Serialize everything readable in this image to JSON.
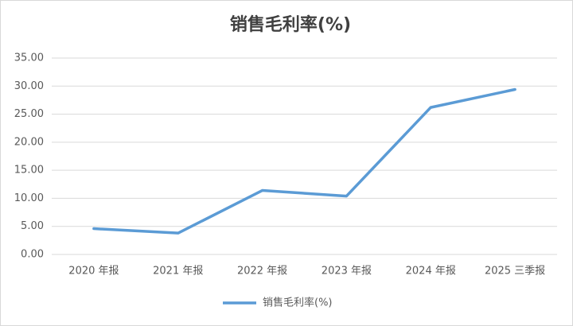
{
  "chart_data": {
    "type": "line",
    "title": "销售毛利率(%)",
    "categories": [
      "2020 年报",
      "2021 年报",
      "2022 年报",
      "2023 年报",
      "2024 年报",
      "2025 三季报"
    ],
    "series": [
      {
        "name": "销售毛利率(%)",
        "color": "#5b9bd5",
        "values": [
          4.6,
          3.8,
          11.4,
          10.4,
          26.2,
          29.4
        ]
      }
    ],
    "ylim": [
      0,
      35
    ],
    "yticks": [
      {
        "value": 0,
        "label": "0.00"
      },
      {
        "value": 5,
        "label": "5.00"
      },
      {
        "value": 10,
        "label": "10.00"
      },
      {
        "value": 15,
        "label": "15.00"
      },
      {
        "value": 20,
        "label": "20.00"
      },
      {
        "value": 25,
        "label": "25.00"
      },
      {
        "value": 30,
        "label": "30.00"
      },
      {
        "value": 35,
        "label": "35.00"
      }
    ],
    "grid": true,
    "legend": "bottom"
  }
}
